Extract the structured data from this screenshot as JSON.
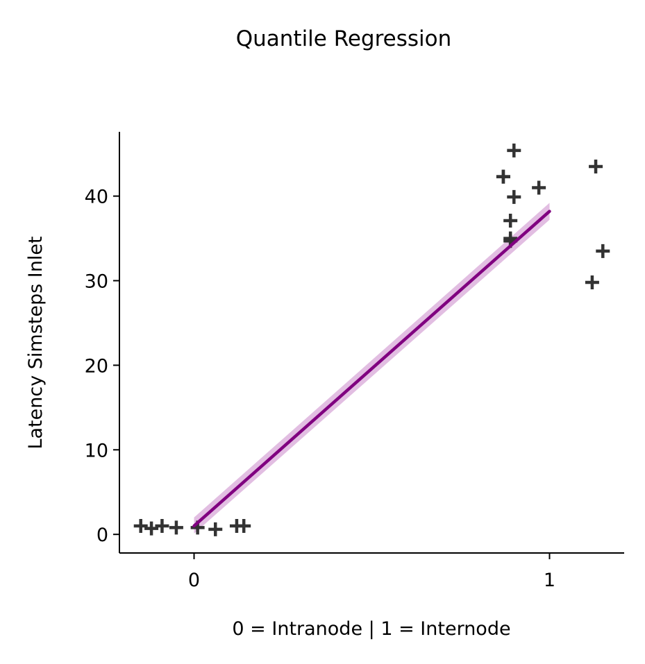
{
  "chart_data": {
    "type": "scatter",
    "title": "Quantile Regression",
    "xlabel": "0 = Intranode | 1 = Internode",
    "ylabel": "Latency Simsteps Inlet",
    "xlim": [
      -0.21,
      1.21
    ],
    "ylim": [
      -2.2,
      47.6
    ],
    "xticks": [
      0,
      1
    ],
    "yticks": [
      0,
      10,
      20,
      30,
      40
    ],
    "grid": false,
    "colors": {
      "points": "#333333",
      "fit_line": "#800080",
      "fit_band": "#d8a8d8"
    },
    "series": [
      {
        "type": "scatter",
        "marker": "plus",
        "x": [
          -0.15,
          -0.12,
          -0.09,
          -0.05,
          0.01,
          0.06,
          0.12,
          0.14,
          0.87,
          0.9,
          0.87,
          0.9,
          0.97,
          0.89,
          0.89,
          0.89,
          1.13,
          1.15,
          1.12
        ],
        "y": [
          1,
          0.7,
          1,
          0.8,
          0.8,
          0.6,
          1,
          1,
          42.3,
          45.4,
          42.3,
          39.9,
          41,
          37.1,
          35,
          34.7,
          43.5,
          33.5,
          29.8
        ]
      },
      {
        "type": "line",
        "x": [
          0,
          1
        ],
        "y": [
          1,
          38.2
        ],
        "band_lower": [
          0.1,
          37.2
        ],
        "band_upper": [
          2.0,
          39.2
        ]
      }
    ]
  }
}
